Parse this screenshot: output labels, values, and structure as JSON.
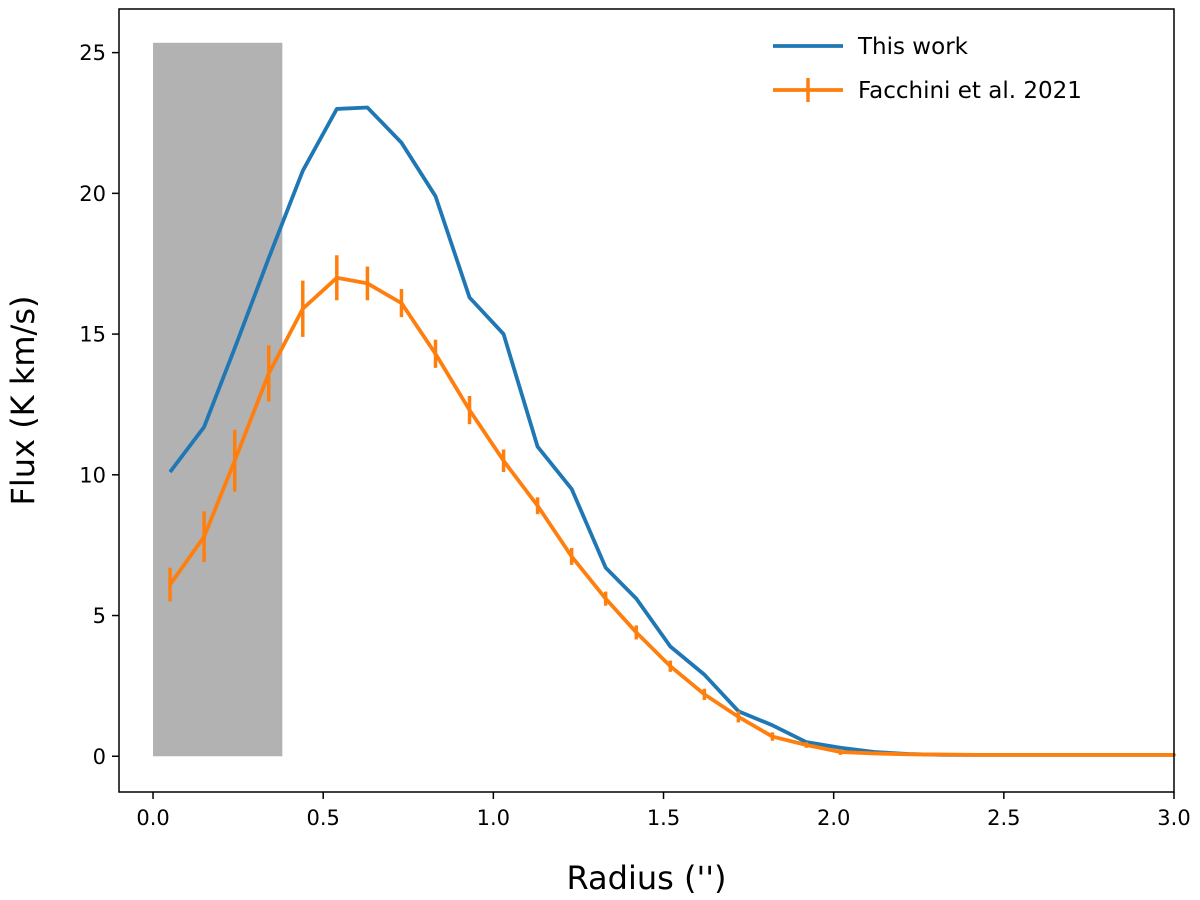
{
  "chart_data": {
    "type": "line",
    "xlabel": "Radius ('')",
    "ylabel": "Flux (K km/s)",
    "xlim": [
      -0.1,
      3.0
    ],
    "ylim": [
      -1.27,
      26.55
    ],
    "x_ticks": [
      0.0,
      0.5,
      1.0,
      1.5,
      2.0,
      2.5,
      3.0
    ],
    "x_tick_labels": [
      "0.0",
      "0.5",
      "1.0",
      "1.5",
      "2.0",
      "2.5",
      "3.0"
    ],
    "y_ticks": [
      0,
      5,
      10,
      15,
      20,
      25
    ],
    "y_tick_labels": [
      "0",
      "5",
      "10",
      "15",
      "20",
      "25"
    ],
    "grid": false,
    "legend_position": "upper-right",
    "shaded_region": {
      "x": [
        0.0,
        0.38
      ],
      "y": [
        0,
        25.35
      ],
      "color": "#b2b2b2"
    },
    "series": [
      {
        "name": "This work",
        "color": "#1f77b4",
        "error_bars": false,
        "x": [
          0.05,
          0.15,
          0.24,
          0.34,
          0.44,
          0.54,
          0.63,
          0.73,
          0.83,
          0.93,
          1.03,
          1.13,
          1.23,
          1.33,
          1.42,
          1.52,
          1.62,
          1.72,
          1.82,
          1.92,
          2.02,
          2.12,
          2.22,
          2.32,
          2.42,
          2.52,
          2.62,
          2.72,
          2.82,
          2.92,
          3.0
        ],
        "y": [
          10.1,
          11.7,
          14.5,
          17.7,
          20.8,
          23.0,
          23.05,
          21.8,
          19.9,
          16.3,
          15.0,
          11.0,
          9.5,
          6.7,
          5.6,
          3.9,
          2.9,
          1.6,
          1.1,
          0.5,
          0.3,
          0.15,
          0.08,
          0.05,
          0.05,
          0.05,
          0.05,
          0.05,
          0.05,
          0.05,
          0.05
        ]
      },
      {
        "name": "Facchini et al. 2021",
        "color": "#ff7f0e",
        "error_bars": true,
        "x": [
          0.05,
          0.15,
          0.24,
          0.34,
          0.44,
          0.54,
          0.63,
          0.73,
          0.83,
          0.93,
          1.03,
          1.13,
          1.23,
          1.33,
          1.42,
          1.52,
          1.62,
          1.72,
          1.82,
          1.92,
          2.02,
          2.12,
          2.22,
          2.32,
          2.42,
          2.52,
          2.62,
          2.72,
          2.82,
          2.92,
          3.0
        ],
        "y": [
          6.1,
          7.8,
          10.5,
          13.6,
          15.9,
          17.0,
          16.8,
          16.1,
          14.3,
          12.3,
          10.5,
          8.9,
          7.1,
          5.6,
          4.4,
          3.2,
          2.2,
          1.4,
          0.7,
          0.4,
          0.15,
          0.1,
          0.07,
          0.06,
          0.05,
          0.05,
          0.05,
          0.05,
          0.05,
          0.05,
          0.05
        ],
        "err": [
          0.6,
          0.9,
          1.1,
          1.0,
          1.0,
          0.8,
          0.6,
          0.5,
          0.5,
          0.5,
          0.4,
          0.3,
          0.3,
          0.25,
          0.25,
          0.2,
          0.2,
          0.2,
          0.15,
          0.1,
          0.1,
          0.05,
          0.05,
          0.05,
          0.05,
          0.05,
          0.05,
          0.05,
          0.05,
          0.05,
          0.05
        ]
      }
    ]
  }
}
